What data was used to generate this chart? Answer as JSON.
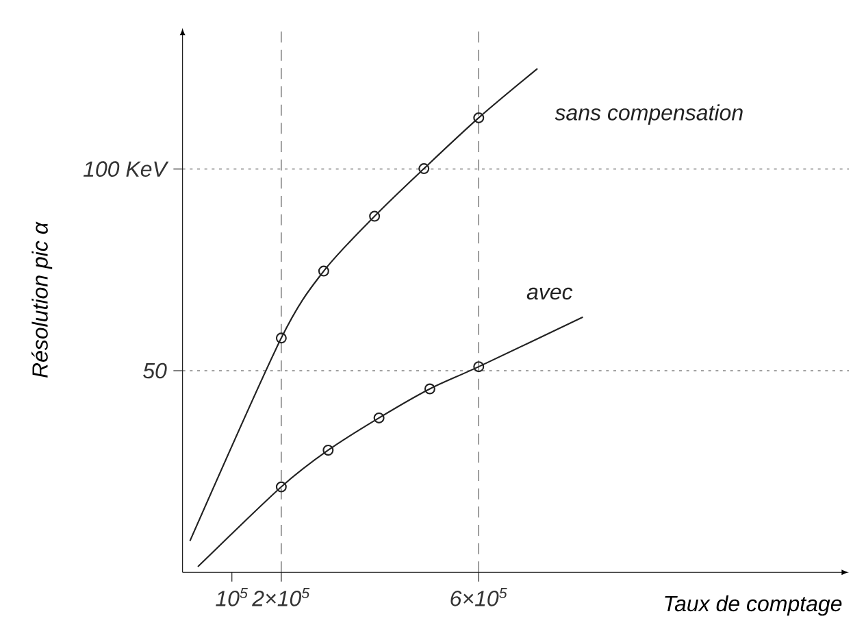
{
  "chart_data": {
    "type": "line",
    "xlabel": "Taux de comptage",
    "ylabel": "Résolution pic α",
    "xlim": [
      0,
      1350000
    ],
    "ylim": [
      0,
      135
    ],
    "xticks": [
      {
        "value": 100000,
        "label": "10$^{5}$"
      },
      {
        "value": 200000,
        "label": "2×10$^{5}$"
      },
      {
        "value": 600000,
        "label": "6×10$^{5}$"
      }
    ],
    "yticks": [
      50,
      {
        "value": 100,
        "label": "100 KeV"
      }
    ],
    "series": [
      {
        "name": "sans compensation",
        "color": "#222222",
        "marker": "none",
        "x": [
          15000,
          200000,
          286000,
          389000,
          489000,
          600000,
          719000
        ],
        "values": [
          7.8,
          58.1,
          74.7,
          88.3,
          100.1,
          112.7,
          124.9
        ]
      },
      {
        "name": "avec",
        "color": "#222222",
        "marker": "none",
        "x": [
          31000,
          200000,
          295000,
          398000,
          501000,
          600000,
          811000
        ],
        "values": [
          1.4,
          21.2,
          30.3,
          38.3,
          45.5,
          51.0,
          63.3
        ]
      },
      {
        "type": "scatter",
        "color": "#222222",
        "marker": "circle",
        "x": [
          200000,
          286000,
          389000,
          489000,
          600000
        ],
        "values": [
          58.1,
          74.7,
          88.3,
          100.1,
          112.7
        ]
      },
      {
        "type": "scatter",
        "color": "#222222",
        "marker": "circle",
        "x": [
          200000,
          295000,
          398000,
          501000,
          600000
        ],
        "values": [
          21.2,
          30.3,
          38.3,
          45.5,
          51.0
        ]
      }
    ],
    "ref_lines": [
      {
        "axis": "x",
        "value": 200000,
        "line_style": "dashed",
        "color": "#444444"
      },
      {
        "axis": "x",
        "value": 600000,
        "line_style": "dashed",
        "color": "#444444"
      },
      {
        "axis": "y",
        "value": 50,
        "line_style": "dotted",
        "color": "#444444"
      },
      {
        "axis": "y",
        "value": 100,
        "line_style": "dotted",
        "color": "#444444"
      }
    ],
    "line_style": "solid"
  }
}
